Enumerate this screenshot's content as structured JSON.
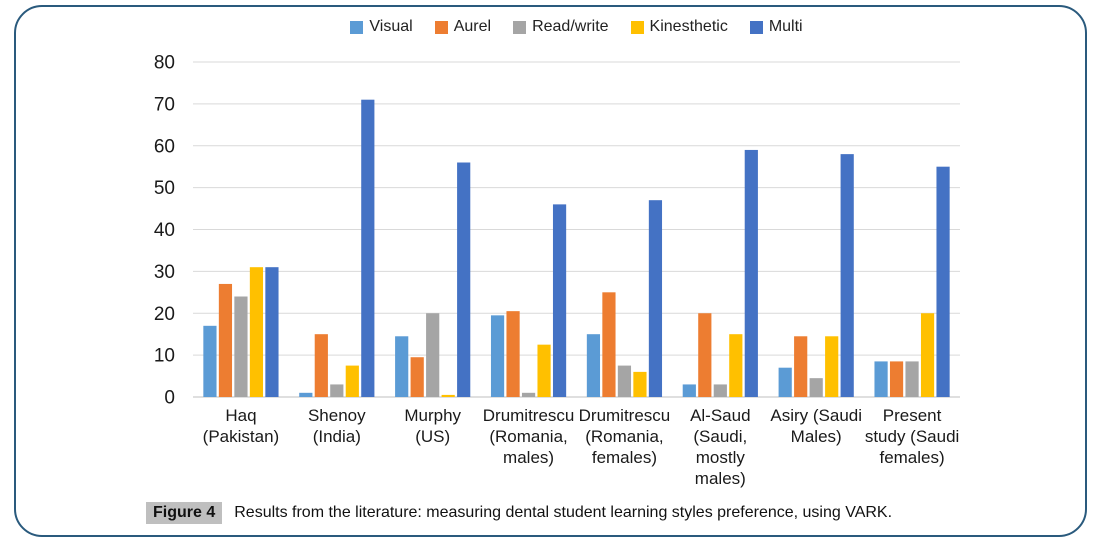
{
  "frame": {
    "border_color": "#2a5a7d"
  },
  "caption": {
    "tag": "Figure 4",
    "tag_bg": "#bfbfbf",
    "text": "Results from the literature: measuring dental student learning styles preference, using VARK."
  },
  "chart_data": {
    "type": "bar",
    "title": "",
    "xlabel": "",
    "ylabel": "",
    "ylim": [
      0,
      80
    ],
    "ytick_step": 10,
    "grid": true,
    "legend_position": "top",
    "gridline_color": "#d9d9d9",
    "categories": [
      "Haq (Pakistan)",
      "Shenoy (India)",
      "Murphy (US)",
      "Drumitrescu (Romania, males)",
      "Drumitrescu (Romania, females)",
      "Al-Saud (Saudi, mostly males)",
      "Asiry (Saudi Males)",
      "Present study (Saudi females)"
    ],
    "category_lines": [
      [
        "Haq",
        "(Pakistan)"
      ],
      [
        "Shenoy",
        "(India)"
      ],
      [
        "Murphy",
        "(US)"
      ],
      [
        "Drumitrescu",
        "(Romania,",
        "males)"
      ],
      [
        "Drumitrescu",
        "(Romania,",
        "females)"
      ],
      [
        "Al-Saud",
        "(Saudi,",
        "mostly",
        "males)"
      ],
      [
        "Asiry (Saudi",
        "Males)"
      ],
      [
        "Present",
        "study (Saudi",
        "females)"
      ]
    ],
    "series": [
      {
        "name": "Visual",
        "color": "#5b9bd5",
        "values": [
          17,
          1,
          14.5,
          19.5,
          15,
          3,
          7,
          8.5
        ]
      },
      {
        "name": "Aurel",
        "color": "#ed7d31",
        "values": [
          27,
          15,
          9.5,
          20.5,
          25,
          20,
          14.5,
          8.5
        ]
      },
      {
        "name": "Read/write",
        "color": "#a5a5a5",
        "values": [
          24,
          3,
          20,
          1,
          7.5,
          3,
          4.5,
          8.5
        ]
      },
      {
        "name": "Kinesthetic",
        "color": "#ffc000",
        "values": [
          31,
          7.5,
          0.5,
          12.5,
          6,
          15,
          14.5,
          20
        ]
      },
      {
        "name": "Multi",
        "color": "#4472c4",
        "values": [
          31,
          71,
          56,
          46,
          47,
          59,
          58,
          55
        ]
      }
    ]
  }
}
